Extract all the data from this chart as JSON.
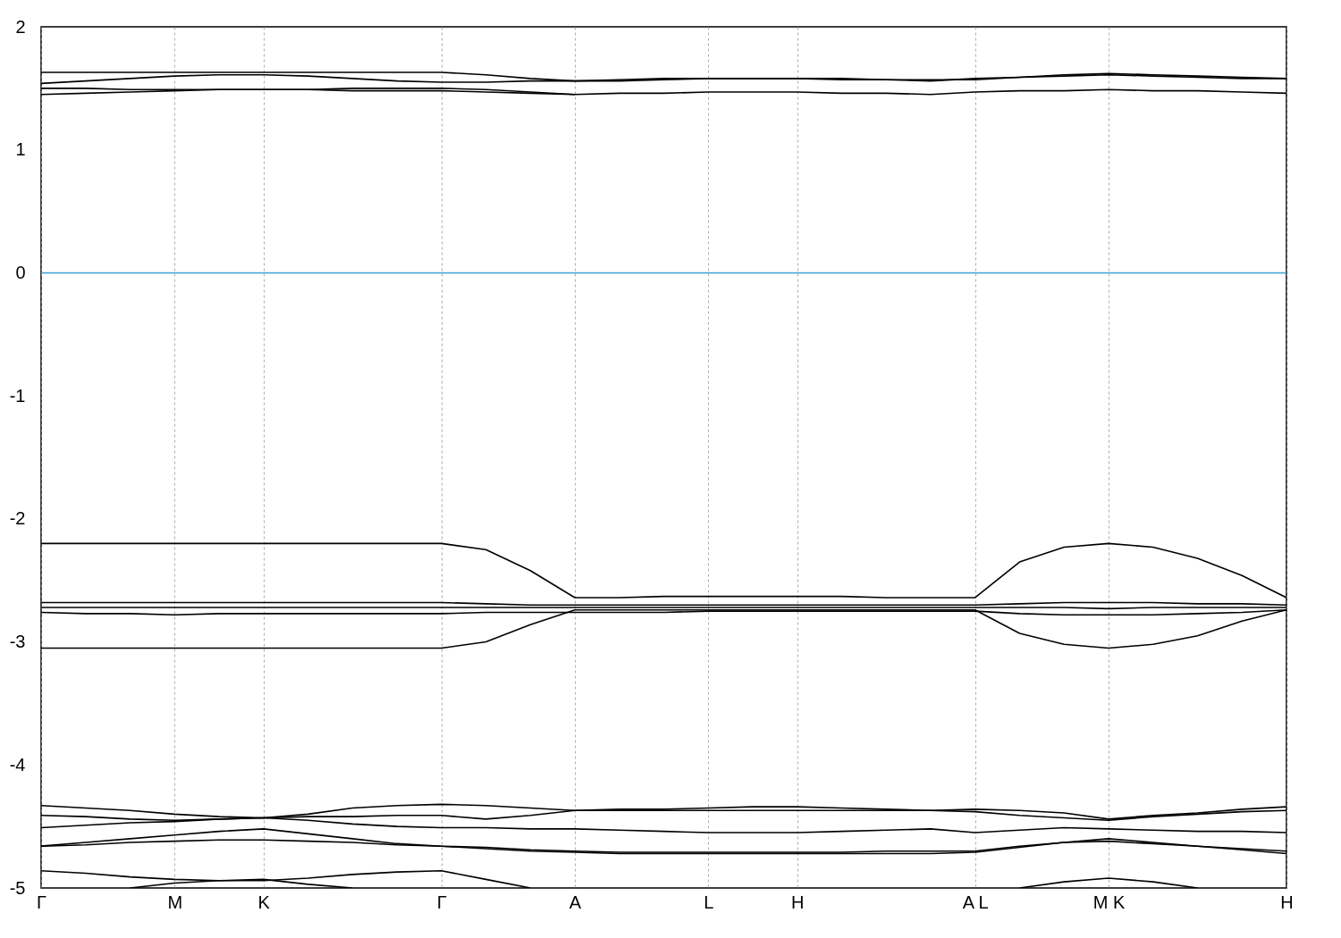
{
  "chart_data": {
    "type": "line",
    "categories": [
      "Γ",
      null,
      null,
      "M",
      null,
      "K",
      null,
      null,
      null,
      "Γ",
      null,
      null,
      "A",
      null,
      null,
      "L",
      null,
      "H",
      null,
      null,
      null,
      "A L",
      null,
      null,
      "M K",
      null,
      null,
      null,
      "H"
    ],
    "ylim": [
      -5,
      2
    ],
    "yticks": [
      -5,
      -4,
      -3,
      -2,
      -1,
      0,
      1,
      2
    ],
    "grid": "x",
    "ref_lines": [
      {
        "axis": "y",
        "value": 0,
        "color": "#3a9fd6"
      }
    ],
    "series": [
      {
        "color": "#000000",
        "values": [
          1.63,
          1.63,
          1.63,
          1.63,
          1.63,
          1.63,
          1.63,
          1.63,
          1.63,
          1.63,
          1.61,
          1.58,
          1.56,
          1.57,
          1.58,
          1.58,
          1.58,
          1.58,
          1.58,
          1.57,
          1.57,
          1.57,
          1.59,
          1.61,
          1.62,
          1.61,
          1.6,
          1.59,
          1.58
        ]
      },
      {
        "color": "#000000",
        "values": [
          1.54,
          1.56,
          1.58,
          1.6,
          1.61,
          1.61,
          1.6,
          1.58,
          1.56,
          1.55,
          1.55,
          1.56,
          1.56,
          1.56,
          1.57,
          1.58,
          1.58,
          1.58,
          1.57,
          1.57,
          1.56,
          1.58,
          1.59,
          1.6,
          1.61,
          1.6,
          1.59,
          1.58,
          1.58
        ]
      },
      {
        "color": "#000000",
        "values": [
          1.5,
          1.5,
          1.49,
          1.49,
          1.49,
          1.49,
          1.49,
          1.48,
          1.48,
          1.48,
          1.47,
          1.46,
          1.45,
          1.46,
          1.46,
          1.47,
          1.47,
          1.47,
          1.46,
          1.46,
          1.45,
          1.47,
          1.48,
          1.48,
          1.49,
          1.48,
          1.48,
          1.47,
          1.46
        ]
      },
      {
        "color": "#000000",
        "values": [
          1.45,
          1.46,
          1.47,
          1.48,
          1.49,
          1.49,
          1.49,
          1.5,
          1.5,
          1.5,
          1.49,
          1.47,
          1.45,
          null,
          null,
          null,
          null,
          null,
          null,
          null,
          null,
          null,
          null,
          null,
          null,
          null,
          null,
          null,
          null
        ]
      },
      {
        "color": "#000000",
        "values": [
          -2.2,
          -2.2,
          -2.2,
          -2.2,
          -2.2,
          -2.2,
          -2.2,
          -2.2,
          -2.2,
          -2.2,
          -2.25,
          -2.42,
          -2.64,
          -2.64,
          -2.63,
          -2.63,
          -2.63,
          -2.63,
          -2.63,
          -2.64,
          -2.64,
          -2.64,
          -2.35,
          -2.23,
          -2.2,
          -2.23,
          -2.32,
          -2.46,
          -2.64
        ]
      },
      {
        "color": "#000000",
        "values": [
          -2.68,
          -2.68,
          -2.68,
          -2.68,
          -2.68,
          -2.68,
          -2.68,
          -2.68,
          -2.68,
          -2.68,
          -2.69,
          -2.7,
          -2.7,
          -2.7,
          -2.7,
          -2.7,
          -2.7,
          -2.7,
          -2.7,
          -2.7,
          -2.7,
          -2.7,
          -2.69,
          -2.68,
          -2.68,
          -2.68,
          -2.69,
          -2.69,
          -2.7
        ]
      },
      {
        "color": "#000000",
        "values": [
          -2.72,
          -2.72,
          -2.72,
          -2.72,
          -2.72,
          -2.72,
          -2.72,
          -2.72,
          -2.72,
          -2.72,
          -2.72,
          -2.72,
          -2.72,
          -2.72,
          -2.72,
          -2.72,
          -2.72,
          -2.72,
          -2.72,
          -2.72,
          -2.72,
          -2.72,
          -2.72,
          -2.72,
          -2.73,
          -2.72,
          -2.72,
          -2.72,
          -2.72
        ]
      },
      {
        "color": "#000000",
        "values": [
          -2.76,
          -2.77,
          -2.77,
          -2.78,
          -2.77,
          -2.77,
          -2.77,
          -2.77,
          -2.77,
          -2.77,
          -2.76,
          -2.76,
          -2.76,
          -2.76,
          -2.76,
          -2.75,
          -2.75,
          -2.75,
          -2.75,
          -2.75,
          -2.75,
          -2.75,
          -2.77,
          -2.78,
          -2.78,
          -2.78,
          -2.77,
          -2.76,
          -2.74
        ]
      },
      {
        "color": "#000000",
        "values": [
          -3.05,
          -3.05,
          -3.05,
          -3.05,
          -3.05,
          -3.05,
          -3.05,
          -3.05,
          -3.05,
          -3.05,
          -3.0,
          -2.86,
          -2.74,
          -2.74,
          -2.74,
          -2.74,
          -2.74,
          -2.74,
          -2.74,
          -2.74,
          -2.74,
          -2.74,
          -2.93,
          -3.02,
          -3.05,
          -3.02,
          -2.95,
          -2.83,
          -2.74
        ]
      },
      {
        "color": "#000000",
        "values": [
          -4.33,
          -4.35,
          -4.37,
          -4.4,
          -4.42,
          -4.43,
          -4.4,
          -4.35,
          -4.33,
          -4.32,
          -4.33,
          -4.35,
          -4.37,
          -4.36,
          -4.36,
          -4.35,
          -4.34,
          -4.34,
          -4.35,
          -4.36,
          -4.37,
          -4.36,
          -4.37,
          -4.39,
          -4.44,
          -4.41,
          -4.39,
          -4.36,
          -4.34
        ]
      },
      {
        "color": "#000000",
        "values": [
          -4.41,
          -4.42,
          -4.44,
          -4.45,
          -4.44,
          -4.43,
          -4.42,
          -4.42,
          -4.41,
          -4.41,
          -4.44,
          -4.41,
          -4.37,
          -4.37,
          -4.37,
          -4.37,
          -4.37,
          -4.37,
          -4.37,
          -4.37,
          -4.37,
          -4.38,
          -4.41,
          -4.43,
          -4.45,
          -4.42,
          -4.4,
          -4.38,
          -4.37
        ]
      },
      {
        "color": "#000000",
        "values": [
          -4.51,
          -4.49,
          -4.47,
          -4.46,
          -4.44,
          -4.43,
          -4.45,
          -4.48,
          -4.5,
          -4.51,
          -4.51,
          -4.52,
          -4.52,
          -4.53,
          -4.54,
          -4.55,
          -4.55,
          -4.55,
          -4.54,
          -4.53,
          -4.52,
          -4.55,
          -4.53,
          -4.51,
          -4.52,
          -4.53,
          -4.54,
          -4.54,
          -4.55
        ]
      },
      {
        "color": "#000000",
        "values": [
          -4.66,
          -4.63,
          -4.6,
          -4.57,
          -4.54,
          -4.52,
          -4.56,
          -4.6,
          -4.64,
          -4.66,
          -4.67,
          -4.69,
          -4.7,
          -4.71,
          -4.71,
          -4.71,
          -4.71,
          -4.71,
          -4.71,
          -4.7,
          -4.7,
          -4.7,
          -4.66,
          -4.63,
          -4.62,
          -4.64,
          -4.66,
          -4.68,
          -4.7
        ]
      },
      {
        "color": "#000000",
        "values": [
          -4.66,
          -4.65,
          -4.63,
          -4.62,
          -4.61,
          -4.61,
          -4.62,
          -4.63,
          -4.65,
          -4.66,
          -4.68,
          -4.7,
          -4.71,
          -4.72,
          -4.72,
          -4.72,
          -4.72,
          -4.72,
          -4.72,
          -4.72,
          -4.72,
          -4.71,
          -4.67,
          -4.63,
          -4.6,
          -4.63,
          -4.66,
          -4.69,
          -4.72
        ]
      },
      {
        "color": "#000000",
        "values": [
          -4.86,
          -4.88,
          -4.91,
          -4.93,
          -4.94,
          -4.94,
          -4.92,
          -4.89,
          -4.87,
          -4.86,
          -4.93,
          -5.0,
          null,
          null,
          null,
          null,
          null,
          null,
          null,
          null,
          null,
          null,
          null,
          null,
          null,
          null,
          null,
          null,
          null
        ]
      },
      {
        "color": "#000000",
        "values": [
          null,
          null,
          -5.0,
          -4.96,
          -4.94,
          -4.93,
          -4.97,
          -5.0,
          null,
          null,
          null,
          null,
          null,
          null,
          null,
          null,
          null,
          null,
          null,
          null,
          null,
          null,
          null,
          null,
          null,
          null,
          null,
          null,
          null
        ]
      },
      {
        "color": "#000000",
        "values": [
          null,
          null,
          null,
          null,
          null,
          null,
          null,
          null,
          null,
          null,
          null,
          null,
          null,
          null,
          null,
          null,
          null,
          null,
          null,
          null,
          null,
          null,
          -5.0,
          -4.95,
          -4.92,
          -4.95,
          -5.0,
          null,
          null
        ]
      }
    ]
  }
}
